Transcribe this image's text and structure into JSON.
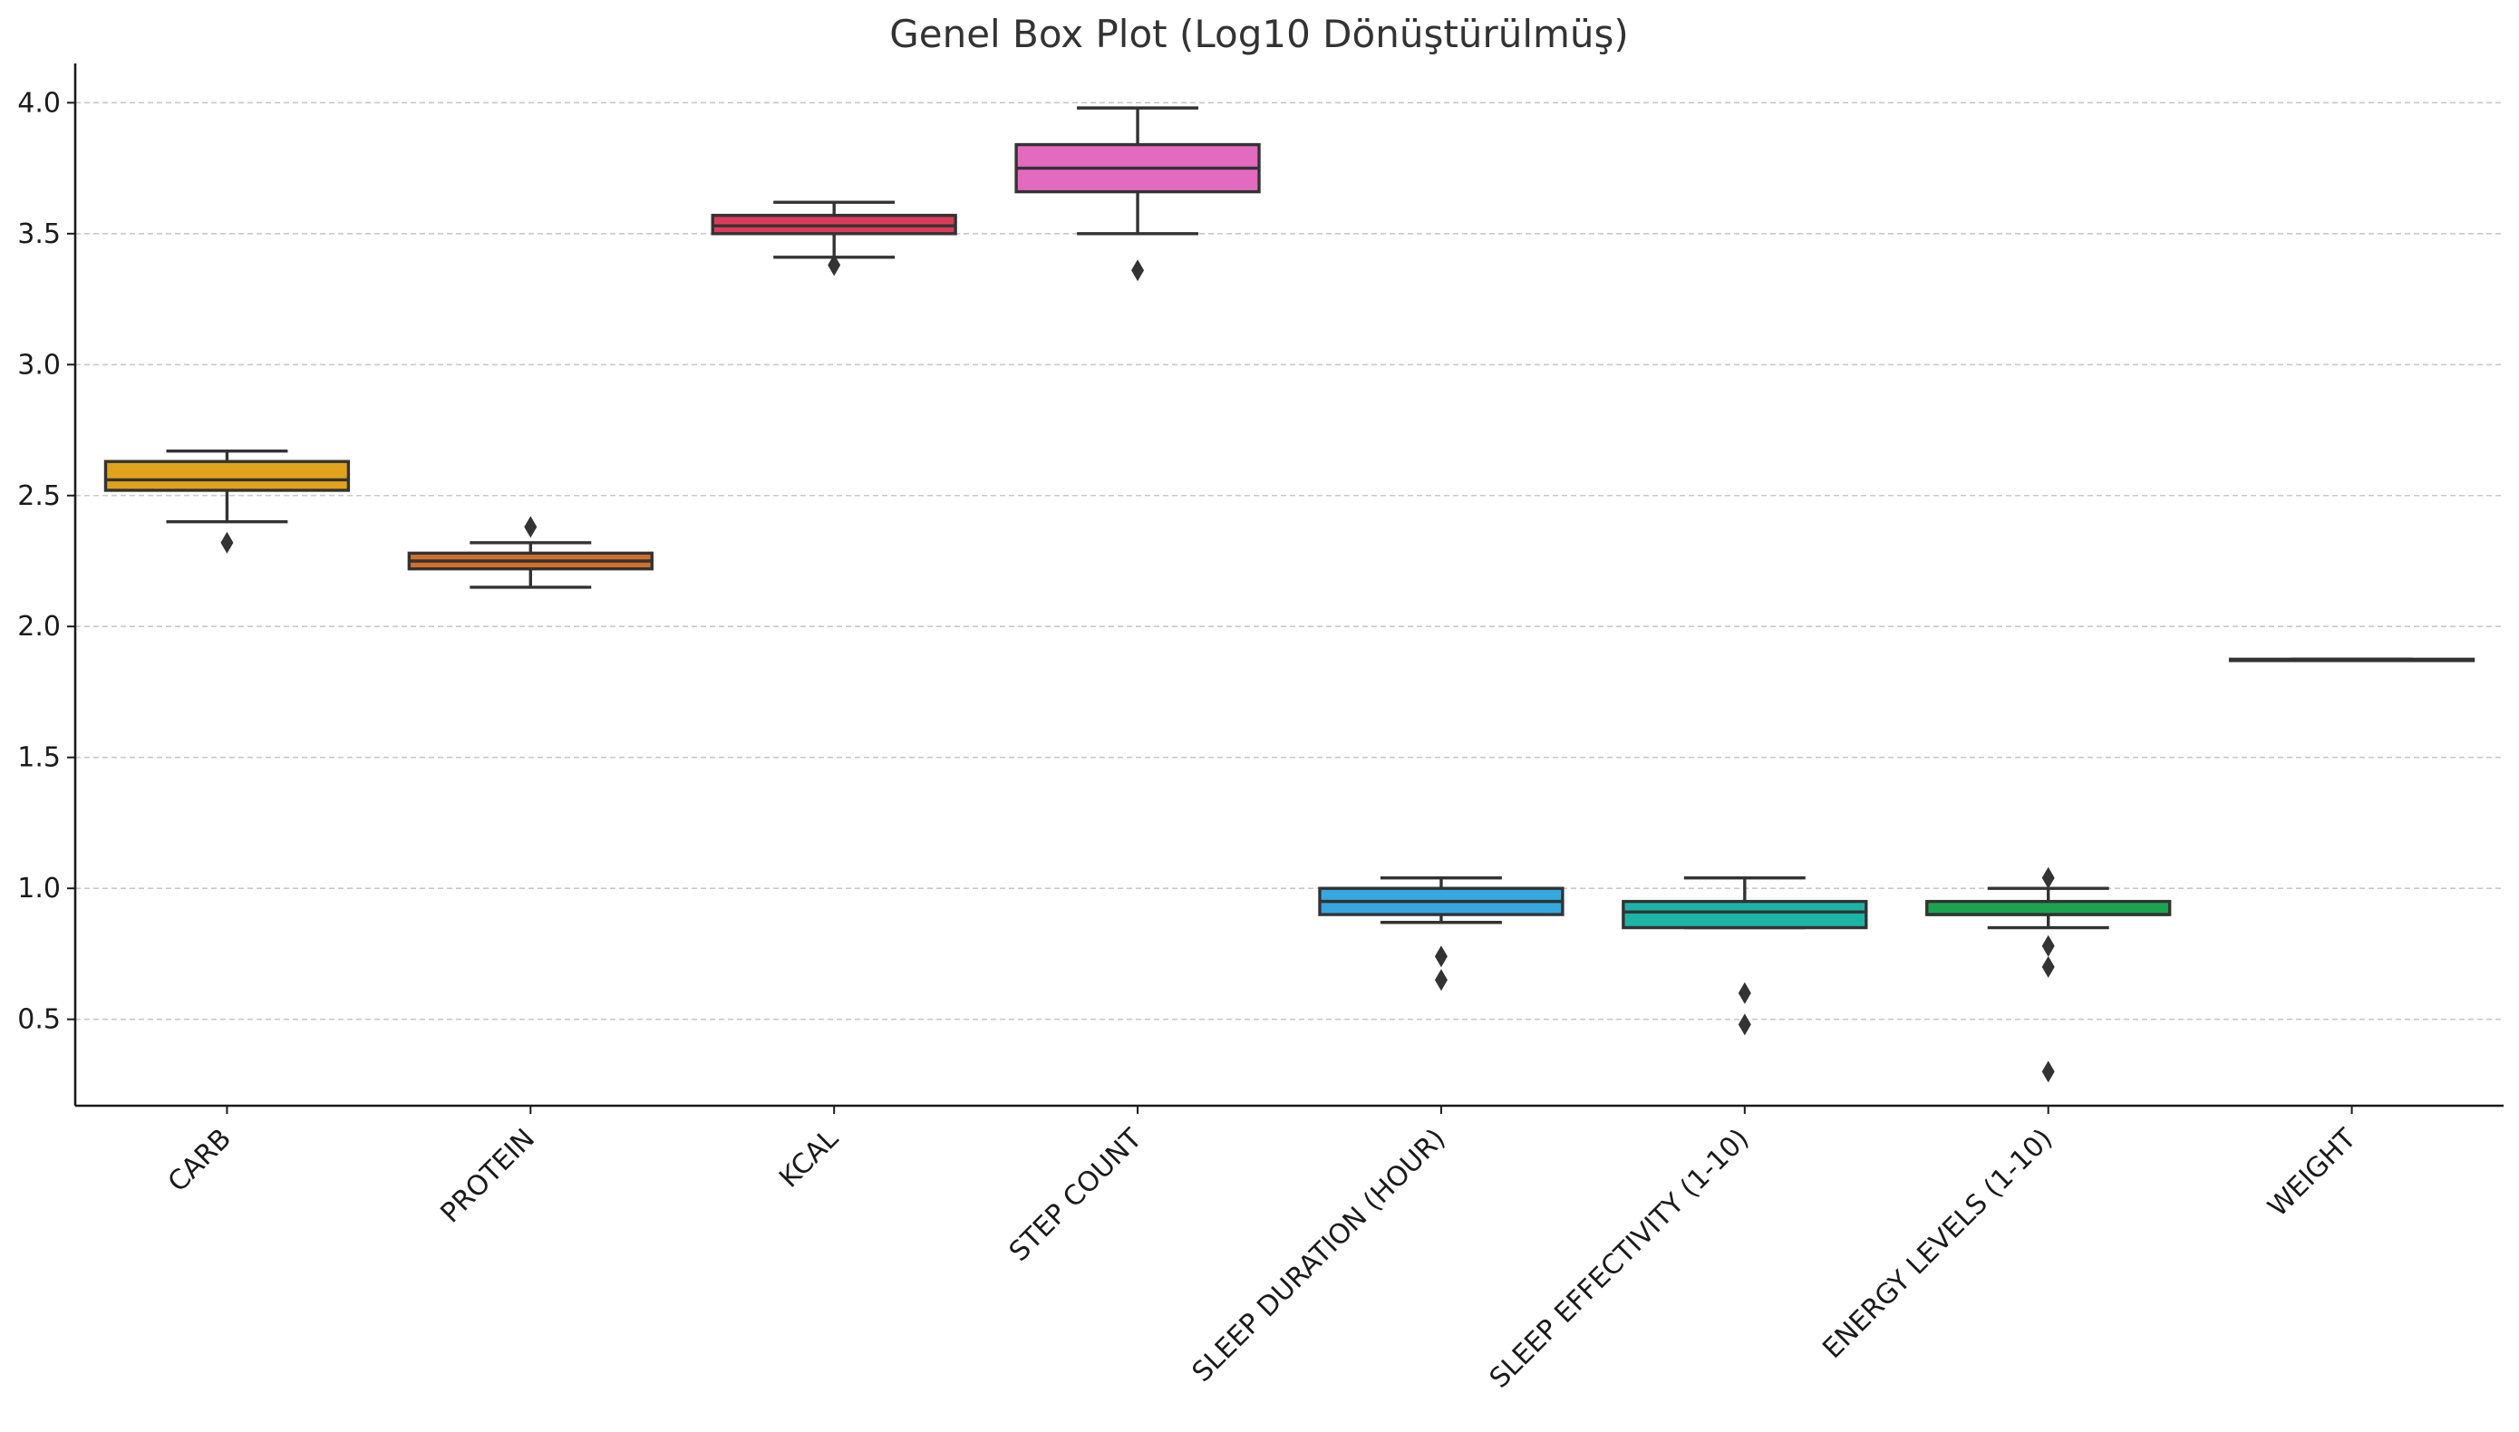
{
  "chart_data": {
    "type": "box",
    "title": "Genel Box Plot (Log10 Dönüştürülmüş)",
    "xlabel": "",
    "ylabel": "",
    "ylim": [
      0.17,
      4.15
    ],
    "yticks": [
      0.5,
      1.0,
      1.5,
      2.0,
      2.5,
      3.0,
      3.5,
      4.0
    ],
    "ytick_labels": [
      "0.5",
      "1.0",
      "1.5",
      "2.0",
      "2.5",
      "3.0",
      "3.5",
      "4.0"
    ],
    "grid": "horizontal-dashed",
    "categories": [
      "CARB",
      "PROTEIN",
      "KCAL",
      "STEP COUNT",
      "SLEEP DURATION (HOUR)",
      "SLEEP EFFECTIVITY (1-10)",
      "ENERGY LEVELS (1-10)",
      "WEIGHT"
    ],
    "boxes": [
      {
        "category": "CARB",
        "color": "#E1A21B",
        "whisker_low": 2.4,
        "q1": 2.52,
        "median": 2.56,
        "q3": 2.63,
        "whisker_high": 2.67,
        "outliers": [
          2.32
        ]
      },
      {
        "category": "PROTEIN",
        "color": "#D1702B",
        "whisker_low": 2.15,
        "q1": 2.22,
        "median": 2.25,
        "q3": 2.28,
        "whisker_high": 2.32,
        "outliers": [
          2.38
        ]
      },
      {
        "category": "KCAL",
        "color": "#DB3B5A",
        "whisker_low": 3.41,
        "q1": 3.5,
        "median": 3.53,
        "q3": 3.57,
        "whisker_high": 3.62,
        "outliers": [
          3.38
        ]
      },
      {
        "category": "STEP COUNT",
        "color": "#E26BC0",
        "whisker_low": 3.5,
        "q1": 3.66,
        "median": 3.75,
        "q3": 3.84,
        "whisker_high": 3.98,
        "outliers": [
          3.36
        ]
      },
      {
        "category": "SLEEP DURATION (HOUR)",
        "color": "#35A8E0",
        "whisker_low": 0.87,
        "q1": 0.9,
        "median": 0.95,
        "q3": 1.0,
        "whisker_high": 1.04,
        "outliers": [
          0.74,
          0.65
        ]
      },
      {
        "category": "SLEEP EFFECTIVITY (1-10)",
        "color": "#1DB4A8",
        "whisker_low": 0.85,
        "q1": 0.85,
        "median": 0.91,
        "q3": 0.95,
        "whisker_high": 1.04,
        "outliers": [
          0.6,
          0.48
        ]
      },
      {
        "category": "ENERGY LEVELS (1-10)",
        "color": "#1AA550",
        "whisker_low": 0.85,
        "q1": 0.9,
        "median": 0.9,
        "q3": 0.95,
        "whisker_high": 1.0,
        "outliers": [
          1.04,
          0.78,
          0.7,
          0.3
        ]
      },
      {
        "category": "WEIGHT",
        "color": "#555555",
        "whisker_low": 1.87,
        "q1": 1.87,
        "median": 1.87,
        "q3": 1.875,
        "whisker_high": 1.875,
        "outliers": []
      }
    ]
  }
}
